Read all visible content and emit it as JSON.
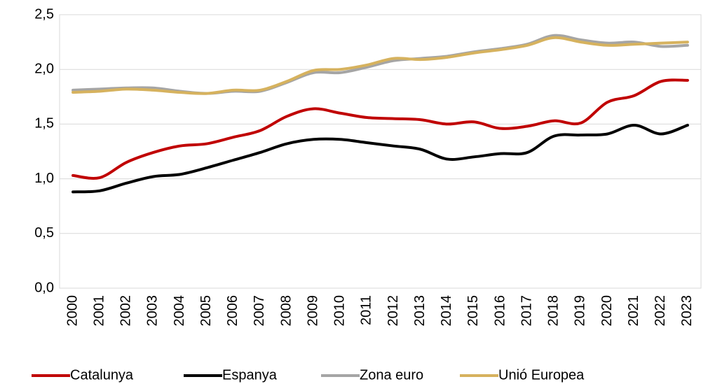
{
  "chart_data": {
    "type": "line",
    "categories": [
      "2000",
      "2001",
      "2002",
      "2003",
      "2004",
      "2005",
      "2006",
      "2007",
      "2008",
      "2009",
      "2010",
      "2011",
      "2012",
      "2013",
      "2014",
      "2015",
      "2016",
      "2017",
      "2018",
      "2019",
      "2020",
      "2021",
      "2022",
      "2023"
    ],
    "series": [
      {
        "name": "Catalunya",
        "color": "#c00000",
        "values": [
          1.03,
          1.01,
          1.15,
          1.24,
          1.3,
          1.32,
          1.38,
          1.44,
          1.57,
          1.64,
          1.6,
          1.56,
          1.55,
          1.54,
          1.5,
          1.52,
          1.46,
          1.48,
          1.53,
          1.51,
          1.7,
          1.76,
          1.89,
          1.9
        ]
      },
      {
        "name": "Espanya",
        "color": "#000000",
        "values": [
          0.88,
          0.89,
          0.96,
          1.02,
          1.04,
          1.1,
          1.17,
          1.24,
          1.32,
          1.36,
          1.36,
          1.33,
          1.3,
          1.27,
          1.18,
          1.2,
          1.23,
          1.24,
          1.39,
          1.4,
          1.41,
          1.49,
          1.41,
          1.49
        ]
      },
      {
        "name": "Zona euro",
        "color": "#a5a5a5",
        "values": [
          1.81,
          1.82,
          1.83,
          1.83,
          1.8,
          1.78,
          1.8,
          1.8,
          1.88,
          1.97,
          1.97,
          2.02,
          2.08,
          2.1,
          2.12,
          2.16,
          2.19,
          2.23,
          2.31,
          2.27,
          2.24,
          2.25,
          2.21,
          2.22
        ]
      },
      {
        "name": "Unió Europea",
        "color": "#d6b25e",
        "values": [
          1.79,
          1.8,
          1.82,
          1.81,
          1.79,
          1.78,
          1.81,
          1.81,
          1.89,
          1.99,
          2.0,
          2.04,
          2.1,
          2.09,
          2.11,
          2.15,
          2.18,
          2.22,
          2.29,
          2.25,
          2.22,
          2.23,
          2.24,
          2.25
        ]
      }
    ],
    "ylim": [
      0,
      2.5
    ],
    "yticks": [
      {
        "value": 0,
        "label": "0,0"
      },
      {
        "value": 0.5,
        "label": "0,5"
      },
      {
        "value": 1,
        "label": "1,0"
      },
      {
        "value": 1.5,
        "label": "1,5"
      },
      {
        "value": 2,
        "label": "2,0"
      },
      {
        "value": 2.5,
        "label": "2,5"
      }
    ],
    "grid": true,
    "legend": "bottom"
  }
}
